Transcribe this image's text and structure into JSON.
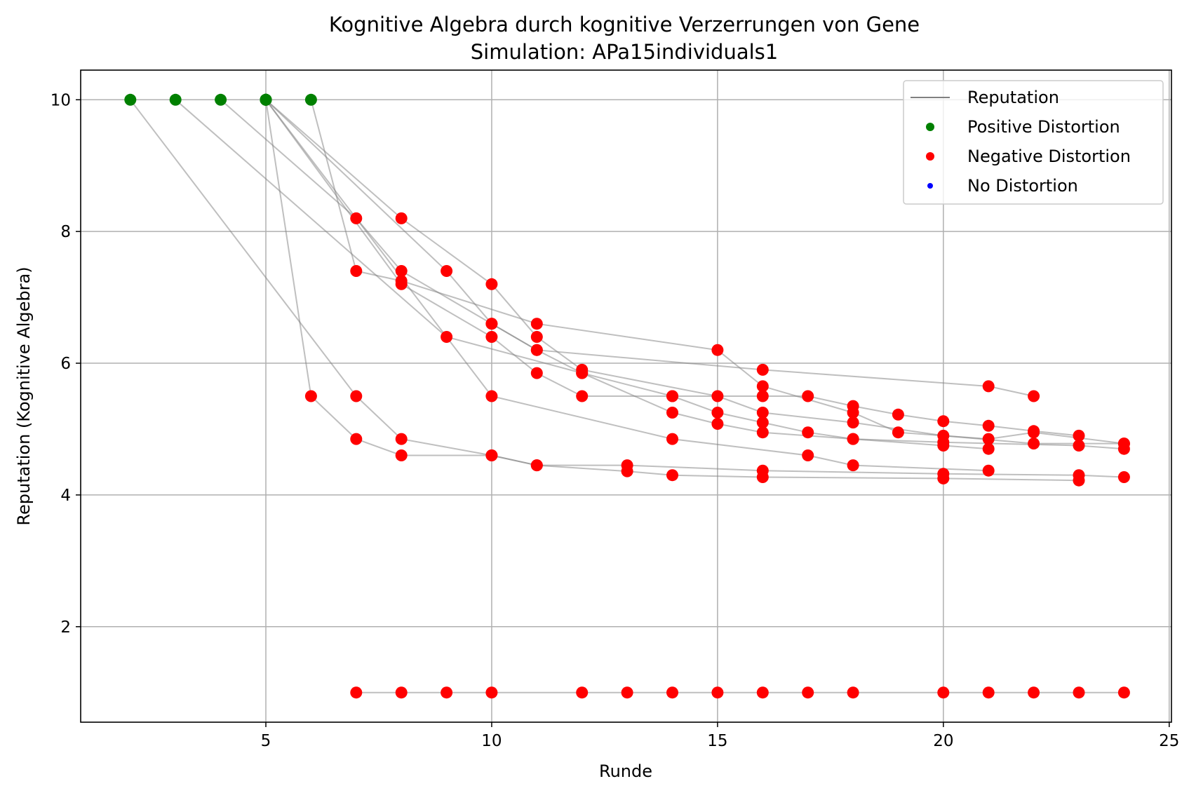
{
  "chart_data": {
    "type": "scatter",
    "title": "Kognitive Algebra durch kognitive Verzerrungen von Gene",
    "subtitle": "Simulation: APa15individuals1",
    "xlabel": "Runde",
    "ylabel": "Reputation (Kognitive Algebra)",
    "xlim": [
      0.9,
      25.05
    ],
    "ylim": [
      0.55,
      10.45
    ],
    "xticks": [
      5,
      10,
      15,
      20,
      25
    ],
    "yticks": [
      2,
      4,
      6,
      8,
      10
    ],
    "grid": true,
    "legend_position": "top-right",
    "legend": [
      {
        "label": "Reputation",
        "kind": "line",
        "color": "#808080"
      },
      {
        "label": "Positive Distortion",
        "kind": "point",
        "color": "#008000"
      },
      {
        "label": "Negative Distortion",
        "kind": "point",
        "color": "#ff0000"
      },
      {
        "label": "No Distortion",
        "kind": "point",
        "color": "#0000ff"
      }
    ],
    "colors": {
      "line": "#808080",
      "positive": "#008000",
      "negative": "#ff0000",
      "none": "#0000ff"
    },
    "series": [
      {
        "points": [
          [
            2,
            10
          ],
          [
            7,
            5.5
          ],
          [
            8,
            4.85
          ],
          [
            10,
            4.6
          ],
          [
            11,
            4.45
          ],
          [
            13,
            4.36
          ],
          [
            14,
            4.3
          ],
          [
            16,
            4.27
          ],
          [
            20,
            4.25
          ],
          [
            23,
            4.22
          ]
        ]
      },
      {
        "points": [
          [
            3,
            10
          ],
          [
            9,
            6.4
          ],
          [
            12,
            5.85
          ],
          [
            14,
            5.5
          ],
          [
            15,
            5.25
          ],
          [
            16,
            5.1
          ],
          [
            17,
            4.95
          ],
          [
            18,
            4.85
          ],
          [
            20,
            4.75
          ],
          [
            21,
            4.7
          ]
        ]
      },
      {
        "points": [
          [
            4,
            10
          ],
          [
            7,
            8.2
          ],
          [
            8,
            7.4
          ],
          [
            10,
            6.6
          ],
          [
            11,
            6.2
          ],
          [
            12,
            5.85
          ],
          [
            14,
            5.25
          ],
          [
            15,
            5.08
          ],
          [
            16,
            4.95
          ],
          [
            18,
            4.85
          ],
          [
            20,
            4.8
          ],
          [
            23,
            4.75
          ],
          [
            24,
            4.7
          ]
        ]
      },
      {
        "points": [
          [
            5,
            10
          ],
          [
            6,
            5.5
          ],
          [
            7,
            4.85
          ],
          [
            8,
            4.6
          ],
          [
            10,
            4.6
          ],
          [
            11,
            4.45
          ],
          [
            13,
            4.45
          ],
          [
            16,
            4.37
          ],
          [
            20,
            4.32
          ],
          [
            23,
            4.3
          ],
          [
            24,
            4.27
          ]
        ]
      },
      {
        "points": [
          [
            5,
            10
          ],
          [
            8,
            8.2
          ],
          [
            10,
            7.2
          ],
          [
            11,
            6.4
          ],
          [
            12,
            5.9
          ],
          [
            15,
            5.5
          ],
          [
            16,
            5.25
          ],
          [
            18,
            5.1
          ],
          [
            20,
            4.9
          ],
          [
            22,
            4.78
          ],
          [
            24,
            4.78
          ]
        ]
      },
      {
        "points": [
          [
            5,
            10
          ],
          [
            8,
            7.2
          ],
          [
            10,
            6.4
          ],
          [
            11,
            5.85
          ],
          [
            12,
            5.5
          ],
          [
            14,
            5.5
          ],
          [
            16,
            5.5
          ],
          [
            17,
            5.5
          ],
          [
            18,
            5.35
          ],
          [
            19,
            5.22
          ],
          [
            20,
            5.12
          ],
          [
            21,
            5.05
          ],
          [
            22,
            4.97
          ],
          [
            23,
            4.9
          ]
        ]
      },
      {
        "points": [
          [
            5,
            10
          ],
          [
            9,
            7.4
          ],
          [
            10,
            6.6
          ],
          [
            11,
            6.2
          ],
          [
            16,
            5.9
          ],
          [
            21,
            5.65
          ],
          [
            22,
            5.5
          ]
        ]
      },
      {
        "points": [
          [
            6,
            10
          ],
          [
            7,
            7.4
          ],
          [
            8,
            7.25
          ],
          [
            11,
            6.6
          ],
          [
            15,
            6.2
          ],
          [
            16,
            5.65
          ],
          [
            18,
            5.25
          ],
          [
            19,
            4.95
          ],
          [
            21,
            4.85
          ],
          [
            22,
            4.95
          ],
          [
            24,
            4.78
          ]
        ]
      },
      {
        "points": [
          [
            5,
            10
          ],
          [
            10,
            5.5
          ],
          [
            14,
            4.85
          ],
          [
            17,
            4.6
          ],
          [
            18,
            4.45
          ],
          [
            21,
            4.37
          ]
        ]
      },
      {
        "points": [
          [
            7,
            1
          ],
          [
            8,
            1
          ],
          [
            9,
            1
          ],
          [
            10,
            1
          ],
          [
            12,
            1
          ],
          [
            13,
            1
          ],
          [
            14,
            1
          ],
          [
            15,
            1
          ],
          [
            16,
            1
          ],
          [
            17,
            1
          ],
          [
            18,
            1
          ],
          [
            20,
            1
          ],
          [
            21,
            1
          ],
          [
            22,
            1
          ],
          [
            23,
            1
          ],
          [
            24,
            1
          ]
        ]
      }
    ]
  }
}
